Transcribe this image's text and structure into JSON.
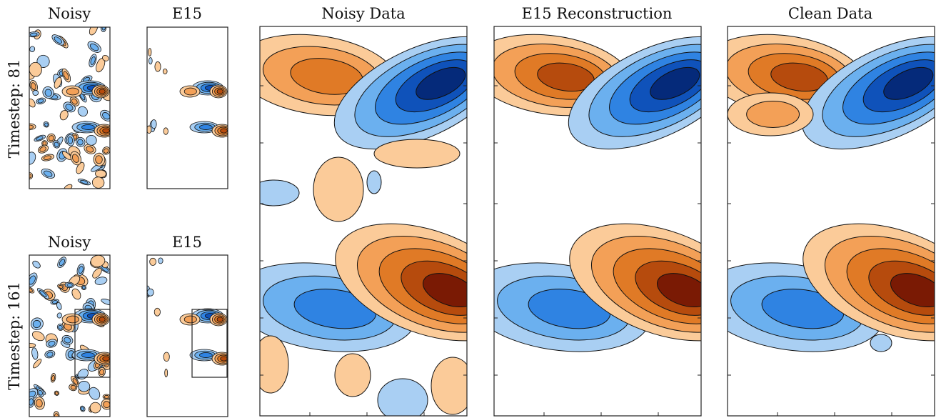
{
  "rows": [
    {
      "label": "Timestep: 81",
      "panels": [
        {
          "title": "Noisy"
        },
        {
          "title": "E15"
        }
      ]
    },
    {
      "label": "Timestep: 161",
      "panels": [
        {
          "title": "Noisy"
        },
        {
          "title": "E15"
        }
      ]
    }
  ],
  "large_panels": [
    {
      "title": "Noisy Data"
    },
    {
      "title": "E15 Reconstruction"
    },
    {
      "title": "Clean Data"
    }
  ]
}
